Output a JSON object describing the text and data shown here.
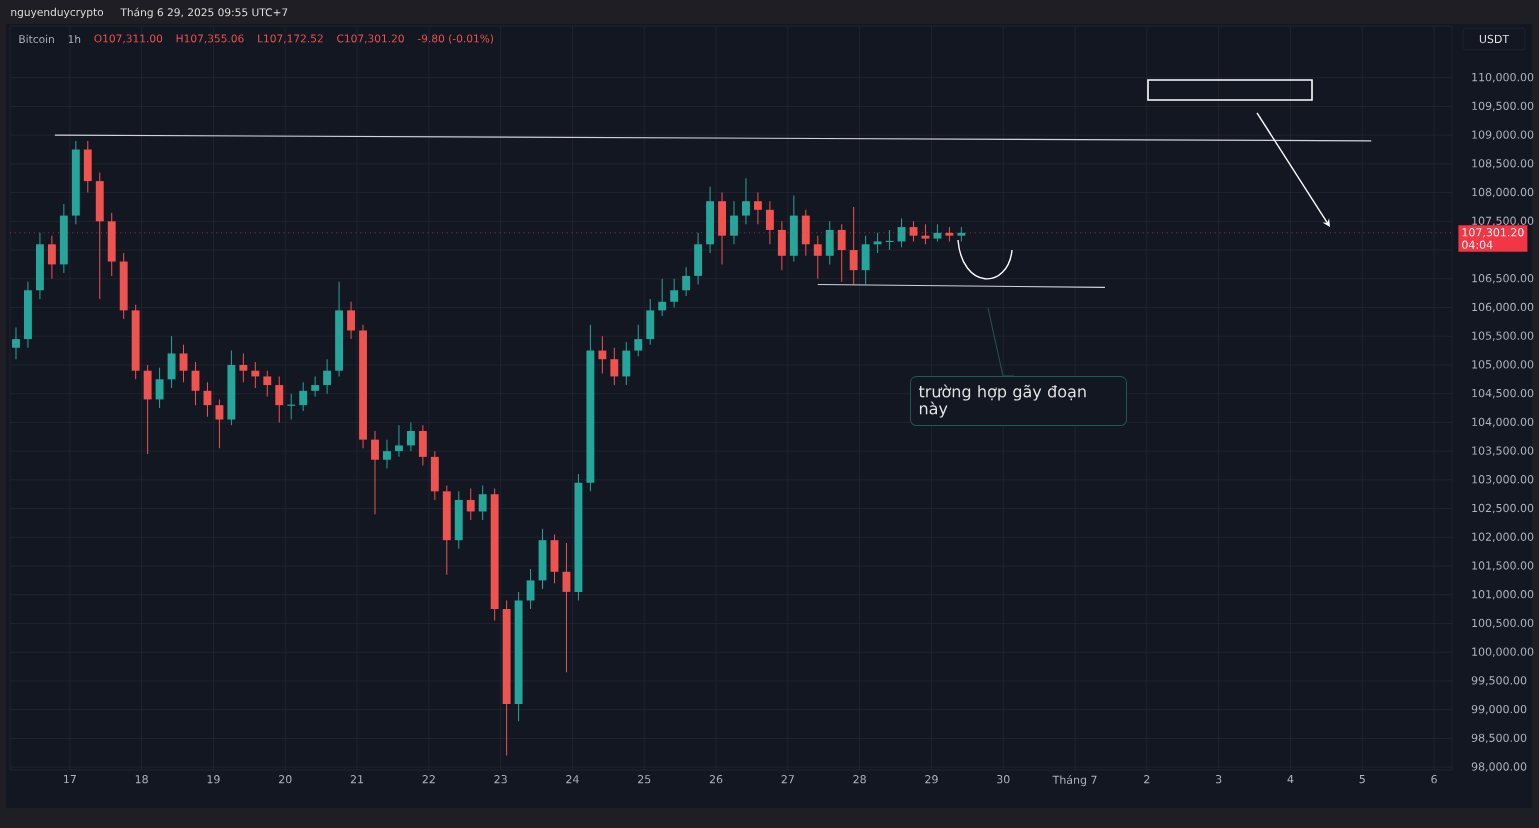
{
  "chart_data": {
    "type": "candlestick",
    "title": "Bitcoin",
    "subtitle": "1h",
    "ylabel": "USDT",
    "x": [
      "2025-06-16T06:00",
      "2025-06-16T10:00",
      "2025-06-16T14:00",
      "2025-06-16T18:00",
      "2025-06-16T22:00",
      "2025-06-17T02:00",
      "2025-06-17T06:00",
      "2025-06-17T10:00",
      "2025-06-17T14:00",
      "2025-06-17T18:00",
      "2025-06-17T22:00",
      "2025-06-18T02:00",
      "2025-06-18T06:00",
      "2025-06-18T10:00",
      "2025-06-18T14:00",
      "2025-06-18T18:00",
      "2025-06-18T22:00",
      "2025-06-19T02:00",
      "2025-06-19T06:00",
      "2025-06-19T10:00",
      "2025-06-19T14:00",
      "2025-06-19T18:00",
      "2025-06-19T22:00",
      "2025-06-20T02:00",
      "2025-06-20T06:00",
      "2025-06-20T10:00",
      "2025-06-20T14:00",
      "2025-06-20T18:00",
      "2025-06-20T22:00",
      "2025-06-21T02:00",
      "2025-06-21T06:00",
      "2025-06-21T10:00",
      "2025-06-21T14:00",
      "2025-06-21T18:00",
      "2025-06-21T22:00",
      "2025-06-22T02:00",
      "2025-06-22T06:00",
      "2025-06-22T10:00",
      "2025-06-22T14:00",
      "2025-06-22T18:00",
      "2025-06-22T22:00",
      "2025-06-23T02:00",
      "2025-06-23T06:00",
      "2025-06-23T10:00",
      "2025-06-23T14:00",
      "2025-06-23T18:00",
      "2025-06-23T22:00",
      "2025-06-24T02:00",
      "2025-06-24T06:00",
      "2025-06-24T10:00",
      "2025-06-24T14:00",
      "2025-06-24T18:00",
      "2025-06-24T22:00",
      "2025-06-25T02:00",
      "2025-06-25T06:00",
      "2025-06-25T10:00",
      "2025-06-25T14:00",
      "2025-06-25T18:00",
      "2025-06-25T22:00",
      "2025-06-26T02:00",
      "2025-06-26T06:00",
      "2025-06-26T10:00",
      "2025-06-26T14:00",
      "2025-06-26T18:00",
      "2025-06-26T22:00",
      "2025-06-27T02:00",
      "2025-06-27T06:00",
      "2025-06-27T10:00",
      "2025-06-27T14:00",
      "2025-06-27T18:00",
      "2025-06-27T22:00",
      "2025-06-28T02:00",
      "2025-06-28T06:00",
      "2025-06-28T10:00",
      "2025-06-28T14:00",
      "2025-06-28T18:00",
      "2025-06-28T22:00",
      "2025-06-29T02:00",
      "2025-06-29T06:00",
      "2025-06-29T10:00"
    ],
    "ohlc": [
      [
        105300,
        105650,
        105100,
        105450
      ],
      [
        105450,
        106450,
        105300,
        106300
      ],
      [
        106300,
        107300,
        106150,
        107100
      ],
      [
        107100,
        107250,
        106500,
        106750
      ],
      [
        106750,
        107800,
        106600,
        107600
      ],
      [
        107600,
        108900,
        107450,
        108750
      ],
      [
        108750,
        108900,
        108000,
        108200
      ],
      [
        108200,
        108350,
        106150,
        107500
      ],
      [
        107500,
        107650,
        106550,
        106800
      ],
      [
        106800,
        106950,
        105800,
        105950
      ],
      [
        105950,
        106050,
        104750,
        104900
      ],
      [
        104900,
        105000,
        103450,
        104400
      ],
      [
        104400,
        104950,
        104250,
        104750
      ],
      [
        104750,
        105500,
        104600,
        105200
      ],
      [
        105200,
        105350,
        104700,
        104900
      ],
      [
        104900,
        105050,
        104300,
        104550
      ],
      [
        104550,
        104700,
        104100,
        104300
      ],
      [
        104300,
        104400,
        103550,
        104050
      ],
      [
        104050,
        105250,
        103950,
        105000
      ],
      [
        105000,
        105200,
        104700,
        104900
      ],
      [
        104900,
        105050,
        104600,
        104800
      ],
      [
        104800,
        104900,
        104450,
        104650
      ],
      [
        104650,
        104800,
        104000,
        104300
      ],
      [
        104300,
        104500,
        104050,
        104300
      ],
      [
        104300,
        104700,
        104200,
        104550
      ],
      [
        104550,
        104800,
        104450,
        104650
      ],
      [
        104650,
        105100,
        104500,
        104900
      ],
      [
        104900,
        106450,
        104800,
        105950
      ],
      [
        105950,
        106100,
        105450,
        105600
      ],
      [
        105600,
        105700,
        103550,
        103700
      ],
      [
        103700,
        103850,
        102400,
        103350
      ],
      [
        103350,
        103700,
        103200,
        103500
      ],
      [
        103500,
        103950,
        103400,
        103600
      ],
      [
        103600,
        104000,
        103500,
        103850
      ],
      [
        103850,
        103950,
        103250,
        103400
      ],
      [
        103400,
        103500,
        102650,
        102800
      ],
      [
        102800,
        102900,
        101350,
        101950
      ],
      [
        101950,
        102800,
        101800,
        102650
      ],
      [
        102650,
        102850,
        102300,
        102450
      ],
      [
        102450,
        102900,
        102300,
        102750
      ],
      [
        102750,
        102850,
        100550,
        100750
      ],
      [
        100750,
        100900,
        98200,
        99100
      ],
      [
        99100,
        101050,
        98800,
        100900
      ],
      [
        100900,
        101450,
        100750,
        101250
      ],
      [
        101250,
        102150,
        101100,
        101950
      ],
      [
        101950,
        102050,
        101200,
        101400
      ],
      [
        101400,
        101900,
        99650,
        101050
      ],
      [
        101050,
        103100,
        100900,
        102950
      ],
      [
        102950,
        105700,
        102800,
        105250
      ],
      [
        105250,
        105500,
        104850,
        105100
      ],
      [
        105100,
        105300,
        104650,
        104800
      ],
      [
        104800,
        105400,
        104650,
        105250
      ],
      [
        105250,
        105700,
        105150,
        105450
      ],
      [
        105450,
        106150,
        105350,
        105950
      ],
      [
        105950,
        106500,
        105850,
        106100
      ],
      [
        106100,
        106500,
        106000,
        106300
      ],
      [
        106300,
        106700,
        106200,
        106550
      ],
      [
        106550,
        107300,
        106400,
        107100
      ],
      [
        107100,
        108100,
        106950,
        107850
      ],
      [
        107850,
        108000,
        106750,
        107250
      ],
      [
        107250,
        107850,
        107100,
        107600
      ],
      [
        107600,
        108250,
        107450,
        107850
      ],
      [
        107850,
        108000,
        107450,
        107700
      ],
      [
        107700,
        107850,
        107100,
        107350
      ],
      [
        107350,
        107500,
        106650,
        106900
      ],
      [
        106900,
        107950,
        106800,
        107600
      ],
      [
        107600,
        107700,
        106900,
        107100
      ],
      [
        107100,
        107250,
        106500,
        106900
      ],
      [
        106900,
        107500,
        106750,
        107350
      ],
      [
        107350,
        107450,
        106450,
        107000
      ],
      [
        107000,
        107750,
        106400,
        106650
      ],
      [
        106650,
        107250,
        106400,
        107100
      ],
      [
        107100,
        107300,
        106950,
        107150
      ],
      [
        107150,
        107350,
        107000,
        107150
      ],
      [
        107150,
        107550,
        107050,
        107400
      ],
      [
        107400,
        107500,
        107150,
        107250
      ],
      [
        107250,
        107450,
        107100,
        107200
      ],
      [
        107200,
        107450,
        107150,
        107300
      ],
      [
        107300,
        107400,
        107150,
        107250
      ],
      [
        107250,
        107400,
        107150,
        107300
      ]
    ],
    "series": [
      {
        "type": "line",
        "color": "#d1d4dc",
        "x": [
          "2025-06-16T19:00",
          "2025-07-05T03:00"
        ],
        "values": [
          109000,
          108900
        ]
      },
      {
        "type": "line",
        "color": "#d1d4dc",
        "x": [
          "2025-06-27T10:00",
          "2025-07-01T10:00"
        ],
        "values": [
          106400,
          106350
        ]
      }
    ],
    "ref_lines": [
      {
        "axis": "y",
        "value": 107301.2,
        "label": "107,301.20",
        "color": "#f23645",
        "line_style": "dotted"
      }
    ],
    "annotations": [
      "nguyenduycrypto",
      "Tháng 6 29, 2025 09:55 UTC+7",
      "O107,311.00",
      "H107,355.06",
      "L107,172.52",
      "C107,301.20",
      "-9.80 (-0.01%)",
      "04:04",
      "trường hợp gãy đoạn này"
    ],
    "xlim": [
      "2025-06-16T04:00",
      "2025-07-06T06:00"
    ],
    "xticks": [
      {
        "value": "2025-06-17",
        "label": "17"
      },
      {
        "value": "2025-06-18",
        "label": "18"
      },
      {
        "value": "2025-06-19",
        "label": "19"
      },
      {
        "value": "2025-06-20",
        "label": "20"
      },
      {
        "value": "2025-06-21",
        "label": "21"
      },
      {
        "value": "2025-06-22",
        "label": "22"
      },
      {
        "value": "2025-06-23",
        "label": "23"
      },
      {
        "value": "2025-06-24",
        "label": "24"
      },
      {
        "value": "2025-06-25",
        "label": "25"
      },
      {
        "value": "2025-06-26",
        "label": "26"
      },
      {
        "value": "2025-06-27",
        "label": "27"
      },
      {
        "value": "2025-06-28",
        "label": "28"
      },
      {
        "value": "2025-06-29",
        "label": "29"
      },
      {
        "value": "2025-06-30",
        "label": "30"
      },
      {
        "value": "2025-07-01",
        "label": "Tháng 7"
      },
      {
        "value": "2025-07-02",
        "label": "2"
      },
      {
        "value": "2025-07-03",
        "label": "3"
      },
      {
        "value": "2025-07-04",
        "label": "4"
      },
      {
        "value": "2025-07-05",
        "label": "5"
      },
      {
        "value": "2025-07-06",
        "label": "6"
      }
    ],
    "ylim": [
      97950,
      110900
    ],
    "yticks": [
      {
        "value": 98000,
        "label": "98,000.00"
      },
      {
        "value": 98500,
        "label": "98,500.00"
      },
      {
        "value": 99000,
        "label": "99,000.00"
      },
      {
        "value": 99500,
        "label": "99,500.00"
      },
      {
        "value": 100000,
        "label": "100,000.00"
      },
      {
        "value": 100500,
        "label": "100,500.00"
      },
      {
        "value": 101000,
        "label": "101,000.00"
      },
      {
        "value": 101500,
        "label": "101,500.00"
      },
      {
        "value": 102000,
        "label": "102,000.00"
      },
      {
        "value": 102500,
        "label": "102,500.00"
      },
      {
        "value": 103000,
        "label": "103,000.00"
      },
      {
        "value": 103500,
        "label": "103,500.00"
      },
      {
        "value": 104000,
        "label": "104,000.00"
      },
      {
        "value": 104500,
        "label": "104,500.00"
      },
      {
        "value": 105000,
        "label": "105,000.00"
      },
      {
        "value": 105500,
        "label": "105,500.00"
      },
      {
        "value": 106000,
        "label": "106,000.00"
      },
      {
        "value": 106500,
        "label": "106,500.00"
      },
      {
        "value": 107000,
        "label": null
      },
      {
        "value": 107500,
        "label": "107,500.00"
      },
      {
        "value": 108000,
        "label": "108,000.00"
      },
      {
        "value": 108500,
        "label": "108,500.00"
      },
      {
        "value": 109000,
        "label": "109,000.00"
      },
      {
        "value": 109500,
        "label": "109,500.00"
      },
      {
        "value": 110000,
        "label": "110,000.00"
      }
    ],
    "grid": true
  }
}
